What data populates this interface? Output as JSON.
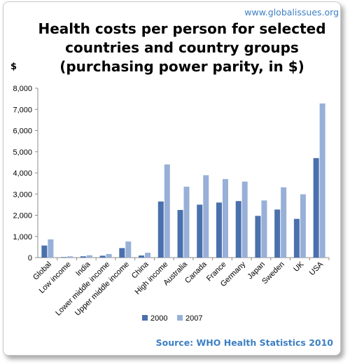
{
  "credit": "www.globalissues.org",
  "source": "Source: WHO Health Statistics 2010",
  "colors": {
    "series_2000": "#4a70ad",
    "series_2007": "#98b0d8",
    "grid": "#8c8c8c",
    "accent_text": "#3d7fc4"
  },
  "chart_data": {
    "type": "bar",
    "title_lines": [
      "Health costs per person for selected",
      "countries and country groups",
      "(purchasing power parity, in $)"
    ],
    "ylabel": "$",
    "xlabel": "",
    "ylim": [
      0,
      8000
    ],
    "yticks": [
      0,
      1000,
      2000,
      3000,
      4000,
      5000,
      6000,
      7000,
      8000
    ],
    "ytick_labels": [
      "0",
      "1,000",
      "2,000",
      "3,000",
      "4,000",
      "5,000",
      "6,000",
      "7,000",
      "8,000"
    ],
    "grid": false,
    "legend_position": "bottom",
    "categories": [
      "Global",
      "Low income",
      "India",
      "Lower middle income",
      "Upper middle income",
      "China",
      "High income",
      "Australia",
      "Canada",
      "France",
      "Germany",
      "Japan",
      "Sweden",
      "UK",
      "USA"
    ],
    "series": [
      {
        "name": "2000",
        "color": "#4a70ad",
        "values": [
          570,
          25,
          60,
          90,
          450,
          100,
          2650,
          2250,
          2500,
          2600,
          2670,
          1970,
          2270,
          1830,
          4700
        ]
      },
      {
        "name": "2007",
        "color": "#98b0d8",
        "values": [
          860,
          60,
          110,
          170,
          760,
          230,
          4400,
          3350,
          3890,
          3710,
          3590,
          2700,
          3320,
          2990,
          7280
        ]
      }
    ]
  }
}
